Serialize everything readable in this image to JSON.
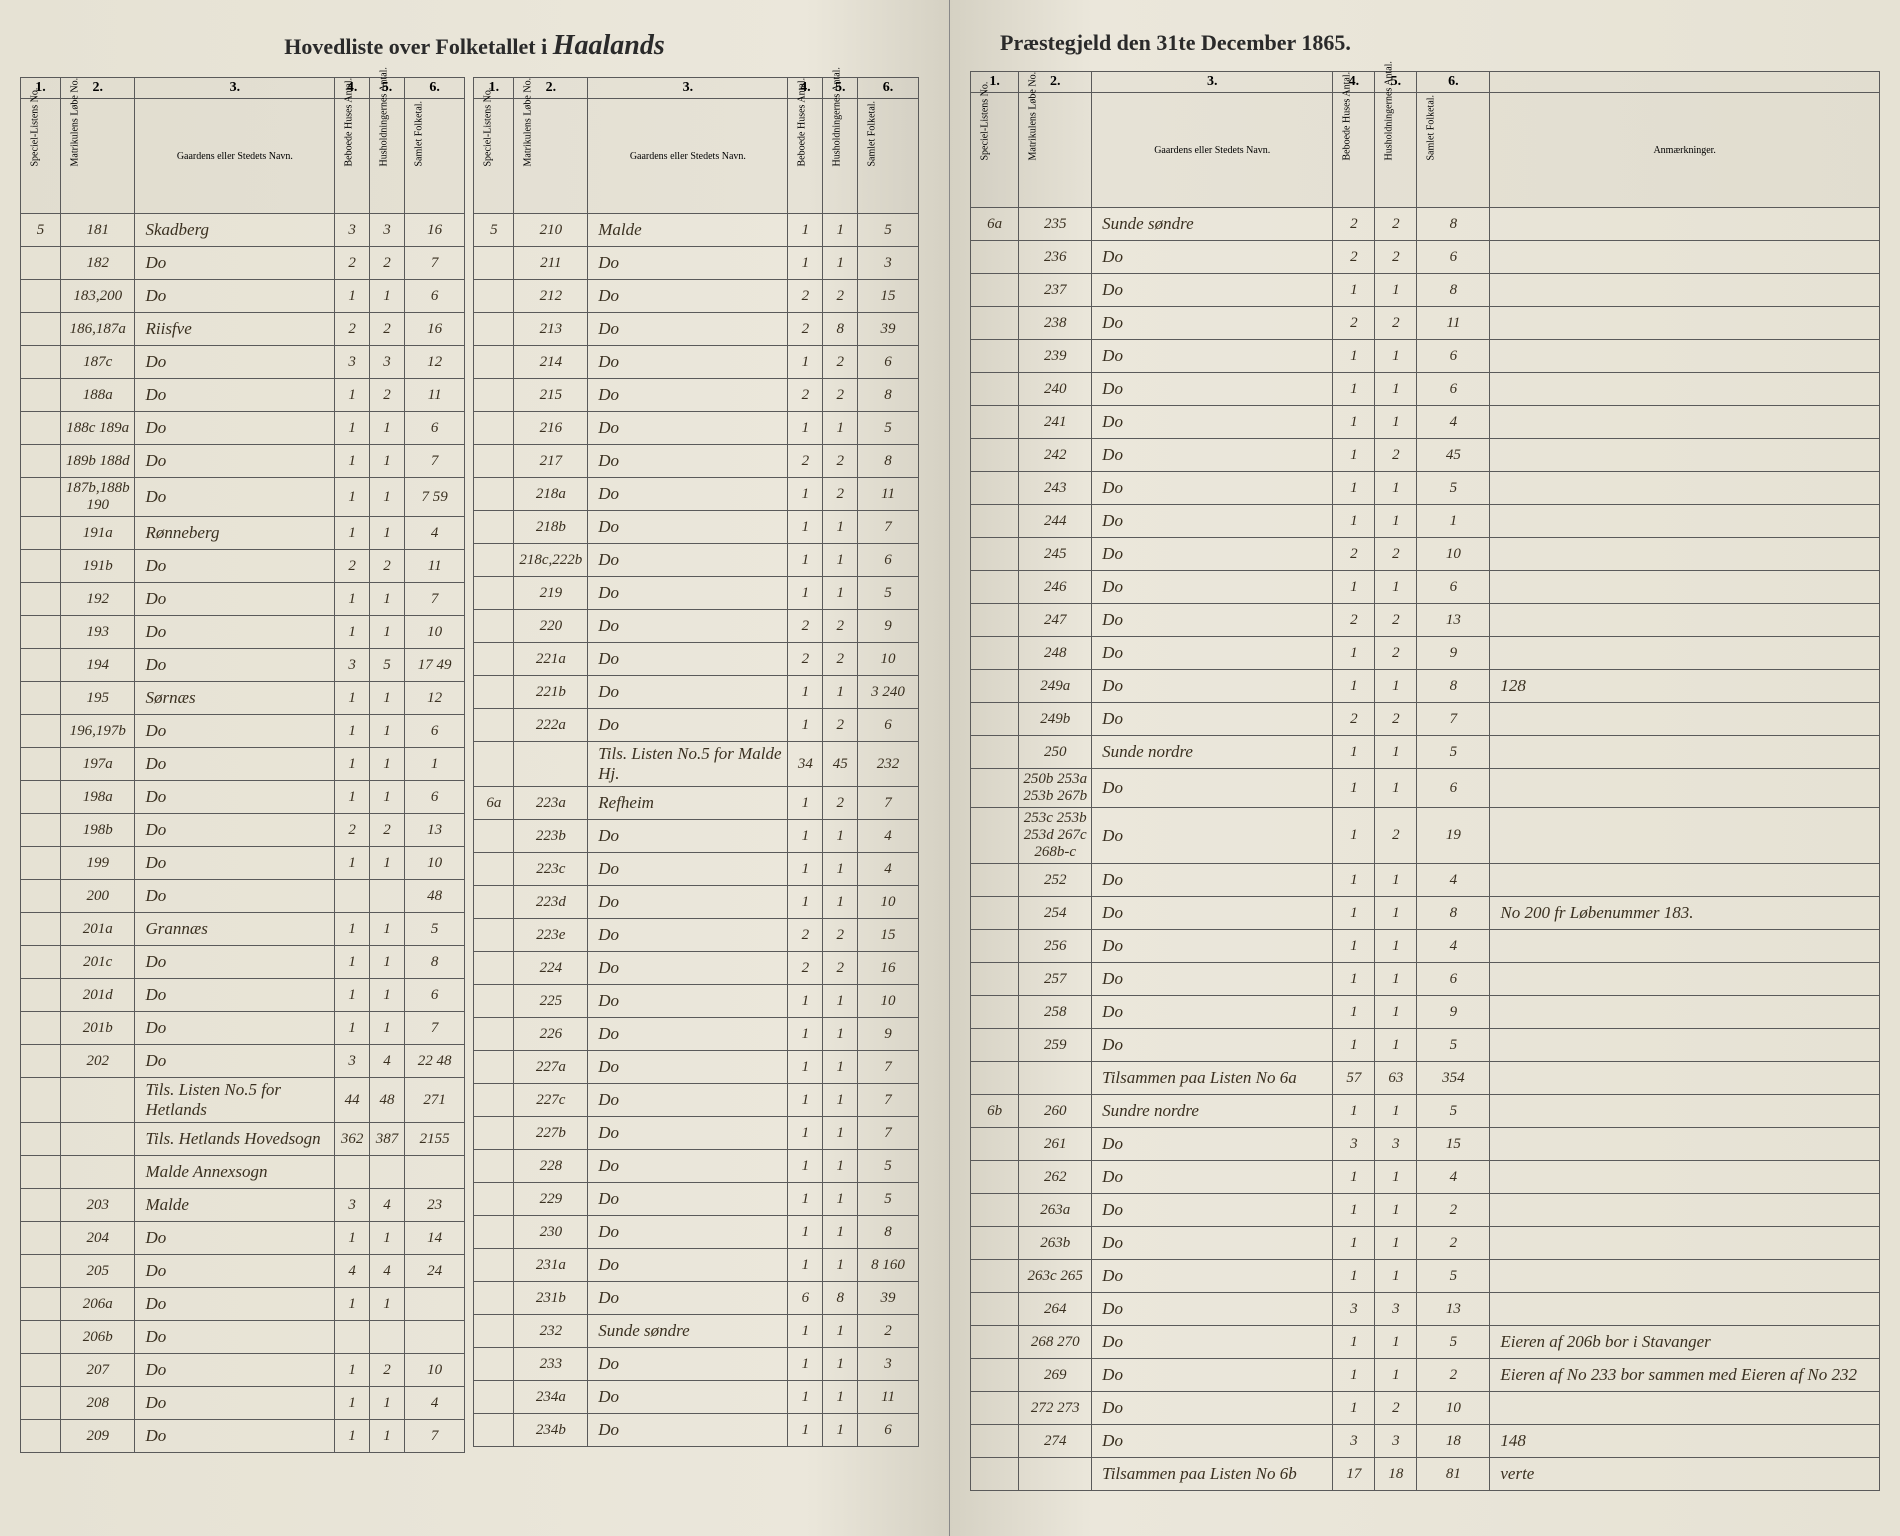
{
  "title": {
    "left_text": "Hovedliste over Folketallet i",
    "parish": "Haalands",
    "right_text": "Præstegjeld den 31te December 1865."
  },
  "headers": {
    "col1": "1.",
    "col2": "2.",
    "col3": "3.",
    "col4": "4.",
    "col5": "5.",
    "col6": "6.",
    "h1": "Speciel-Listens No.",
    "h2": "Matrikulens Løbe No.",
    "h3": "Gaardens eller Stedets Navn.",
    "h4": "Beboede Huses Antal.",
    "h5": "Husholdningernes Antal.",
    "h6": "Samlet Folketal.",
    "remarks": "Anmærkninger."
  },
  "left_sec1": [
    {
      "s": "5",
      "m": "181",
      "n": "Skadberg",
      "h": "3",
      "hh": "3",
      "f": "16"
    },
    {
      "s": "",
      "m": "182",
      "n": "Do",
      "h": "2",
      "hh": "2",
      "f": "7"
    },
    {
      "s": "",
      "m": "183,200",
      "n": "Do",
      "h": "1",
      "hh": "1",
      "f": "6"
    },
    {
      "s": "",
      "m": "186,187a",
      "n": "Riisfve",
      "h": "2",
      "hh": "2",
      "f": "16"
    },
    {
      "s": "",
      "m": "187c",
      "n": "Do",
      "h": "3",
      "hh": "3",
      "f": "12"
    },
    {
      "s": "",
      "m": "188a",
      "n": "Do",
      "h": "1",
      "hh": "2",
      "f": "11"
    },
    {
      "s": "",
      "m": "188c 189a",
      "n": "Do",
      "h": "1",
      "hh": "1",
      "f": "6"
    },
    {
      "s": "",
      "m": "189b 188d",
      "n": "Do",
      "h": "1",
      "hh": "1",
      "f": "7"
    },
    {
      "s": "",
      "m": "187b,188b 190",
      "n": "Do",
      "h": "1",
      "hh": "1",
      "f": "7  59"
    },
    {
      "s": "",
      "m": "191a",
      "n": "Rønneberg",
      "h": "1",
      "hh": "1",
      "f": "4"
    },
    {
      "s": "",
      "m": "191b",
      "n": "Do",
      "h": "2",
      "hh": "2",
      "f": "11"
    },
    {
      "s": "",
      "m": "192",
      "n": "Do",
      "h": "1",
      "hh": "1",
      "f": "7"
    },
    {
      "s": "",
      "m": "193",
      "n": "Do",
      "h": "1",
      "hh": "1",
      "f": "10"
    },
    {
      "s": "",
      "m": "194",
      "n": "Do",
      "h": "3",
      "hh": "5",
      "f": "17 49"
    },
    {
      "s": "",
      "m": "195",
      "n": "Sørnæs",
      "h": "1",
      "hh": "1",
      "f": "12"
    },
    {
      "s": "",
      "m": "196,197b",
      "n": "Do",
      "h": "1",
      "hh": "1",
      "f": "6"
    },
    {
      "s": "",
      "m": "197a",
      "n": "Do",
      "h": "1",
      "hh": "1",
      "f": "1"
    },
    {
      "s": "",
      "m": "198a",
      "n": "Do",
      "h": "1",
      "hh": "1",
      "f": "6"
    },
    {
      "s": "",
      "m": "198b",
      "n": "Do",
      "h": "2",
      "hh": "2",
      "f": "13"
    },
    {
      "s": "",
      "m": "199",
      "n": "Do",
      "h": "1",
      "hh": "1",
      "f": "10"
    },
    {
      "s": "",
      "m": "200",
      "n": "Do",
      "h": "",
      "hh": "",
      "f": "48"
    },
    {
      "s": "",
      "m": "201a",
      "n": "Grannæs",
      "h": "1",
      "hh": "1",
      "f": "5"
    },
    {
      "s": "",
      "m": "201c",
      "n": "Do",
      "h": "1",
      "hh": "1",
      "f": "8"
    },
    {
      "s": "",
      "m": "201d",
      "n": "Do",
      "h": "1",
      "hh": "1",
      "f": "6"
    },
    {
      "s": "",
      "m": "201b",
      "n": "Do",
      "h": "1",
      "hh": "1",
      "f": "7"
    },
    {
      "s": "",
      "m": "202",
      "n": "Do",
      "h": "3",
      "hh": "4",
      "f": "22 48"
    },
    {
      "s": "",
      "m": "",
      "n": "Tils. Listen No.5 for Hetlands",
      "h": "44",
      "hh": "48",
      "f": "271"
    },
    {
      "s": "",
      "m": "",
      "n": "Tils. Hetlands Hovedsogn",
      "h": "362",
      "hh": "387",
      "f": "2155"
    },
    {
      "s": "",
      "m": "",
      "n": "Malde Annexsogn",
      "h": "",
      "hh": "",
      "f": ""
    },
    {
      "s": "",
      "m": "203",
      "n": "Malde",
      "h": "3",
      "hh": "4",
      "f": "23"
    },
    {
      "s": "",
      "m": "204",
      "n": "Do",
      "h": "1",
      "hh": "1",
      "f": "14"
    },
    {
      "s": "",
      "m": "205",
      "n": "Do",
      "h": "4",
      "hh": "4",
      "f": "24"
    },
    {
      "s": "",
      "m": "206a",
      "n": "Do",
      "h": "1",
      "hh": "1",
      "f": ""
    },
    {
      "s": "",
      "m": "206b",
      "n": "Do",
      "h": "",
      "hh": "",
      "f": ""
    },
    {
      "s": "",
      "m": "207",
      "n": "Do",
      "h": "1",
      "hh": "2",
      "f": "10"
    },
    {
      "s": "",
      "m": "208",
      "n": "Do",
      "h": "1",
      "hh": "1",
      "f": "4"
    },
    {
      "s": "",
      "m": "209",
      "n": "Do",
      "h": "1",
      "hh": "1",
      "f": "7"
    }
  ],
  "left_sec2": [
    {
      "s": "5",
      "m": "210",
      "n": "Malde",
      "h": "1",
      "hh": "1",
      "f": "5"
    },
    {
      "s": "",
      "m": "211",
      "n": "Do",
      "h": "1",
      "hh": "1",
      "f": "3"
    },
    {
      "s": "",
      "m": "212",
      "n": "Do",
      "h": "2",
      "hh": "2",
      "f": "15"
    },
    {
      "s": "",
      "m": "213",
      "n": "Do",
      "h": "2",
      "hh": "8",
      "f": "39"
    },
    {
      "s": "",
      "m": "214",
      "n": "Do",
      "h": "1",
      "hh": "2",
      "f": "6"
    },
    {
      "s": "",
      "m": "215",
      "n": "Do",
      "h": "2",
      "hh": "2",
      "f": "8"
    },
    {
      "s": "",
      "m": "216",
      "n": "Do",
      "h": "1",
      "hh": "1",
      "f": "5"
    },
    {
      "s": "",
      "m": "217",
      "n": "Do",
      "h": "2",
      "hh": "2",
      "f": "8"
    },
    {
      "s": "",
      "m": "218a",
      "n": "Do",
      "h": "1",
      "hh": "2",
      "f": "11"
    },
    {
      "s": "",
      "m": "218b",
      "n": "Do",
      "h": "1",
      "hh": "1",
      "f": "7"
    },
    {
      "s": "",
      "m": "218c,222b",
      "n": "Do",
      "h": "1",
      "hh": "1",
      "f": "6"
    },
    {
      "s": "",
      "m": "219",
      "n": "Do",
      "h": "1",
      "hh": "1",
      "f": "5"
    },
    {
      "s": "",
      "m": "220",
      "n": "Do",
      "h": "2",
      "hh": "2",
      "f": "9"
    },
    {
      "s": "",
      "m": "221a",
      "n": "Do",
      "h": "2",
      "hh": "2",
      "f": "10"
    },
    {
      "s": "",
      "m": "221b",
      "n": "Do",
      "h": "1",
      "hh": "1",
      "f": "3 240"
    },
    {
      "s": "",
      "m": "222a",
      "n": "Do",
      "h": "1",
      "hh": "2",
      "f": "6"
    },
    {
      "s": "",
      "m": "",
      "n": "Tils. Listen No.5 for Malde Hj.",
      "h": "34",
      "hh": "45",
      "f": "232"
    },
    {
      "s": "6a",
      "m": "223a",
      "n": "Refheim",
      "h": "1",
      "hh": "2",
      "f": "7"
    },
    {
      "s": "",
      "m": "223b",
      "n": "Do",
      "h": "1",
      "hh": "1",
      "f": "4"
    },
    {
      "s": "",
      "m": "223c",
      "n": "Do",
      "h": "1",
      "hh": "1",
      "f": "4"
    },
    {
      "s": "",
      "m": "223d",
      "n": "Do",
      "h": "1",
      "hh": "1",
      "f": "10"
    },
    {
      "s": "",
      "m": "223e",
      "n": "Do",
      "h": "2",
      "hh": "2",
      "f": "15"
    },
    {
      "s": "",
      "m": "224",
      "n": "Do",
      "h": "2",
      "hh": "2",
      "f": "16"
    },
    {
      "s": "",
      "m": "225",
      "n": "Do",
      "h": "1",
      "hh": "1",
      "f": "10"
    },
    {
      "s": "",
      "m": "226",
      "n": "Do",
      "h": "1",
      "hh": "1",
      "f": "9"
    },
    {
      "s": "",
      "m": "227a",
      "n": "Do",
      "h": "1",
      "hh": "1",
      "f": "7"
    },
    {
      "s": "",
      "m": "227c",
      "n": "Do",
      "h": "1",
      "hh": "1",
      "f": "7"
    },
    {
      "s": "",
      "m": "227b",
      "n": "Do",
      "h": "1",
      "hh": "1",
      "f": "7"
    },
    {
      "s": "",
      "m": "228",
      "n": "Do",
      "h": "1",
      "hh": "1",
      "f": "5"
    },
    {
      "s": "",
      "m": "229",
      "n": "Do",
      "h": "1",
      "hh": "1",
      "f": "5"
    },
    {
      "s": "",
      "m": "230",
      "n": "Do",
      "h": "1",
      "hh": "1",
      "f": "8"
    },
    {
      "s": "",
      "m": "231a",
      "n": "Do",
      "h": "1",
      "hh": "1",
      "f": "8 160"
    },
    {
      "s": "",
      "m": "231b",
      "n": "Do",
      "h": "6",
      "hh": "8",
      "f": "39"
    },
    {
      "s": "",
      "m": "232",
      "n": "Sunde søndre",
      "h": "1",
      "hh": "1",
      "f": "2"
    },
    {
      "s": "",
      "m": "233",
      "n": "Do",
      "h": "1",
      "hh": "1",
      "f": "3"
    },
    {
      "s": "",
      "m": "234a",
      "n": "Do",
      "h": "1",
      "hh": "1",
      "f": "11"
    },
    {
      "s": "",
      "m": "234b",
      "n": "Do",
      "h": "1",
      "hh": "1",
      "f": "6"
    }
  ],
  "right_rows": [
    {
      "s": "6a",
      "m": "235",
      "n": "Sunde søndre",
      "h": "2",
      "hh": "2",
      "f": "8",
      "r": ""
    },
    {
      "s": "",
      "m": "236",
      "n": "Do",
      "h": "2",
      "hh": "2",
      "f": "6",
      "r": ""
    },
    {
      "s": "",
      "m": "237",
      "n": "Do",
      "h": "1",
      "hh": "1",
      "f": "8",
      "r": ""
    },
    {
      "s": "",
      "m": "238",
      "n": "Do",
      "h": "2",
      "hh": "2",
      "f": "11",
      "r": ""
    },
    {
      "s": "",
      "m": "239",
      "n": "Do",
      "h": "1",
      "hh": "1",
      "f": "6",
      "r": ""
    },
    {
      "s": "",
      "m": "240",
      "n": "Do",
      "h": "1",
      "hh": "1",
      "f": "6",
      "r": ""
    },
    {
      "s": "",
      "m": "241",
      "n": "Do",
      "h": "1",
      "hh": "1",
      "f": "4",
      "r": ""
    },
    {
      "s": "",
      "m": "242",
      "n": "Do",
      "h": "1",
      "hh": "2",
      "f": "45",
      "r": ""
    },
    {
      "s": "",
      "m": "243",
      "n": "Do",
      "h": "1",
      "hh": "1",
      "f": "5",
      "r": ""
    },
    {
      "s": "",
      "m": "244",
      "n": "Do",
      "h": "1",
      "hh": "1",
      "f": "1",
      "r": ""
    },
    {
      "s": "",
      "m": "245",
      "n": "Do",
      "h": "2",
      "hh": "2",
      "f": "10",
      "r": ""
    },
    {
      "s": "",
      "m": "246",
      "n": "Do",
      "h": "1",
      "hh": "1",
      "f": "6",
      "r": ""
    },
    {
      "s": "",
      "m": "247",
      "n": "Do",
      "h": "2",
      "hh": "2",
      "f": "13",
      "r": ""
    },
    {
      "s": "",
      "m": "248",
      "n": "Do",
      "h": "1",
      "hh": "2",
      "f": "9",
      "r": ""
    },
    {
      "s": "",
      "m": "249a",
      "n": "Do",
      "h": "1",
      "hh": "1",
      "f": "8",
      "r": "128"
    },
    {
      "s": "",
      "m": "249b",
      "n": "Do",
      "h": "2",
      "hh": "2",
      "f": "7",
      "r": ""
    },
    {
      "s": "",
      "m": "250",
      "n": "Sunde nordre",
      "h": "1",
      "hh": "1",
      "f": "5",
      "r": ""
    },
    {
      "s": "",
      "m": "250b 253a 253b 267b",
      "n": "Do",
      "h": "1",
      "hh": "1",
      "f": "6",
      "r": ""
    },
    {
      "s": "",
      "m": "253c 253b 253d 267c 268b-c",
      "n": "Do",
      "h": "1",
      "hh": "2",
      "f": "19",
      "r": ""
    },
    {
      "s": "",
      "m": "252",
      "n": "Do",
      "h": "1",
      "hh": "1",
      "f": "4",
      "r": ""
    },
    {
      "s": "",
      "m": "254",
      "n": "Do",
      "h": "1",
      "hh": "1",
      "f": "8",
      "r": "No 200 fr Løbenummer 183."
    },
    {
      "s": "",
      "m": "256",
      "n": "Do",
      "h": "1",
      "hh": "1",
      "f": "4",
      "r": ""
    },
    {
      "s": "",
      "m": "257",
      "n": "Do",
      "h": "1",
      "hh": "1",
      "f": "6",
      "r": ""
    },
    {
      "s": "",
      "m": "258",
      "n": "Do",
      "h": "1",
      "hh": "1",
      "f": "9",
      "r": ""
    },
    {
      "s": "",
      "m": "259",
      "n": "Do",
      "h": "1",
      "hh": "1",
      "f": "5",
      "r": ""
    },
    {
      "s": "",
      "m": "",
      "n": "Tilsammen paa Listen No 6a",
      "h": "57",
      "hh": "63",
      "f": "354",
      "r": ""
    },
    {
      "s": "6b",
      "m": "260",
      "n": "Sundre nordre",
      "h": "1",
      "hh": "1",
      "f": "5",
      "r": ""
    },
    {
      "s": "",
      "m": "261",
      "n": "Do",
      "h": "3",
      "hh": "3",
      "f": "15",
      "r": ""
    },
    {
      "s": "",
      "m": "262",
      "n": "Do",
      "h": "1",
      "hh": "1",
      "f": "4",
      "r": ""
    },
    {
      "s": "",
      "m": "263a",
      "n": "Do",
      "h": "1",
      "hh": "1",
      "f": "2",
      "r": ""
    },
    {
      "s": "",
      "m": "263b",
      "n": "Do",
      "h": "1",
      "hh": "1",
      "f": "2",
      "r": ""
    },
    {
      "s": "",
      "m": "263c 265",
      "n": "Do",
      "h": "1",
      "hh": "1",
      "f": "5",
      "r": ""
    },
    {
      "s": "",
      "m": "264",
      "n": "Do",
      "h": "3",
      "hh": "3",
      "f": "13",
      "r": ""
    },
    {
      "s": "",
      "m": "268 270",
      "n": "Do",
      "h": "1",
      "hh": "1",
      "f": "5",
      "r": "Eieren af 206b bor i Stavanger"
    },
    {
      "s": "",
      "m": "269",
      "n": "Do",
      "h": "1",
      "hh": "1",
      "f": "2",
      "r": "Eieren af No 233 bor sammen med Eieren af No 232"
    },
    {
      "s": "",
      "m": "272 273",
      "n": "Do",
      "h": "1",
      "hh": "2",
      "f": "10",
      "r": ""
    },
    {
      "s": "",
      "m": "274",
      "n": "Do",
      "h": "3",
      "hh": "3",
      "f": "18",
      "r": "148"
    },
    {
      "s": "",
      "m": "",
      "n": "Tilsammen paa Listen No 6b",
      "h": "17",
      "hh": "18",
      "f": "81",
      "r": "verte"
    }
  ]
}
